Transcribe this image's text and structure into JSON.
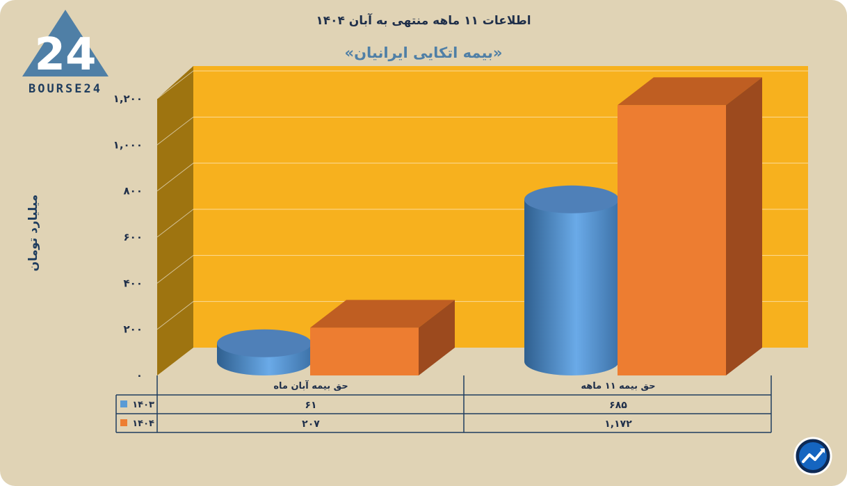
{
  "title": "اطلاعات ۱۱ ماهه منتهی به آبان ۱۴۰۴",
  "subtitle": "«بیمه اتکایی ایرانیان»",
  "logo_text": "BOURSE24",
  "chart_data": {
    "type": "bar",
    "ylabel": "میلیارد تومان",
    "ylim": [
      0,
      1200
    ],
    "yticks": [
      0,
      200,
      400,
      600,
      800,
      1000,
      1200
    ],
    "ytick_labels": [
      "۰",
      "۲۰۰",
      "۴۰۰",
      "۶۰۰",
      "۸۰۰",
      "۱,۰۰۰",
      "۱,۲۰۰"
    ],
    "categories": [
      "حق بیمه آبان ماه",
      "حق بیمه ۱۱ ماهه"
    ],
    "series": [
      {
        "name": "۱۴۰۳",
        "values": [
          61,
          685
        ],
        "value_labels": [
          "۶۱",
          "۶۸۵"
        ],
        "color": "#5b9bd5",
        "shape": "cylinder"
      },
      {
        "name": "۱۴۰۴",
        "values": [
          207,
          1172
        ],
        "value_labels": [
          "۲۰۷",
          "۱,۱۷۲"
        ],
        "color": "#ed7d31",
        "shape": "box"
      }
    ],
    "grid": true,
    "legend": "data-table",
    "colors": {
      "wall": "#f7b11e",
      "side_wall": "#9e7410",
      "background": "#e0d3b5",
      "text": "#1f2f4a"
    }
  }
}
